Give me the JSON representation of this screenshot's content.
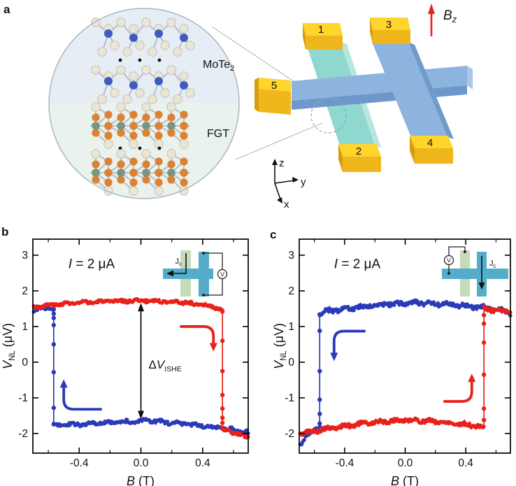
{
  "panel_labels": {
    "a": "a",
    "b": "b",
    "c": "c"
  },
  "panel_a": {
    "inset": {
      "mote2_main": "MoTe",
      "mote2_sub": "2",
      "fgt_label": "FGT",
      "bg_top": "#e7edf5",
      "bg_bottom": "#e9f2ec",
      "atom_colors": {
        "te": "#eae6d7",
        "te_edge": "#c6c2b0",
        "mo": "#3c5dc0",
        "fe": "#dd8233",
        "ge": "#7b947f",
        "bond": "#b4bfc8"
      }
    },
    "device": {
      "contacts": [
        "1",
        "2",
        "3",
        "4",
        "5"
      ],
      "field_label": {
        "main": "B",
        "sub": "z"
      },
      "axis_labels": {
        "x": "x",
        "y": "y",
        "z": "z"
      },
      "colors": {
        "bar_blue_top": "#8db4de",
        "bar_blue_front": "#6e98cc",
        "bar_blue_side": "#6f9ac9",
        "bar_blue_end": "#a9c7e8",
        "bar_teal_top": "#8fd8cf",
        "bar_teal_side": "#b7e6df",
        "gold_top": "#ffd42b",
        "gold_front": "#efb71b",
        "gold_side": "#d89c12",
        "field_arrow": "#e8211a"
      }
    }
  },
  "chart_data": [
    {
      "id": "b",
      "type": "line",
      "title_parts": {
        "var": "I",
        "rest": " = 2 μA"
      },
      "xlabel_parts": {
        "var": "B",
        "unit": " (T)"
      },
      "ylabel_parts": {
        "var": "V",
        "sub": "NL",
        "unit": " (μV)"
      },
      "xlim": [
        -0.7,
        0.695
      ],
      "ylim": [
        -2.55,
        3.45
      ],
      "xticks": {
        "major": [
          -0.4,
          0.0,
          0.4
        ],
        "labels": [
          "-0.4",
          "0.0",
          "0.4"
        ],
        "minor": [
          -0.6,
          -0.2,
          0.2,
          0.6
        ]
      },
      "yticks": {
        "major": [
          -2,
          -1,
          0,
          1,
          2,
          3
        ],
        "labels": [
          "-2",
          "-1",
          "0",
          "1",
          "2",
          "3"
        ]
      },
      "series": [
        {
          "name": "sweep-down-blue",
          "color": "#2a3ab9",
          "seed": 7,
          "noise": 0.045,
          "marker": 2.6,
          "segments": [
            {
              "anchors": [
                [
                  0.695,
                  -1.97
                ],
                [
                  0.55,
                  -1.86
                ],
                [
                  0.3,
                  -1.74
                ],
                [
                  0.05,
                  -1.64
                ],
                [
                  -0.15,
                  -1.68
                ],
                [
                  -0.35,
                  -1.74
                ],
                [
                  -0.565,
                  -1.77
                ]
              ]
            },
            {
              "jump": {
                "b": -0.565,
                "top": 1.5,
                "bottom": -1.78,
                "points": [
                  1.48,
                  1.36,
                  1.24,
                  1.04,
                  0.5,
                  -0.28,
                  -1.28,
                  -1.74
                ]
              }
            },
            {
              "anchors": [
                [
                  -0.565,
                  1.5
                ],
                [
                  -0.62,
                  1.52
                ],
                [
                  -0.66,
                  1.5
                ],
                [
                  -0.695,
                  1.44
                ]
              ]
            }
          ]
        },
        {
          "name": "sweep-up-red",
          "color": "#e8211a",
          "seed": 3,
          "noise": 0.04,
          "marker": 2.6,
          "segments": [
            {
              "anchors": [
                [
                  -0.695,
                  1.55
                ],
                [
                  -0.5,
                  1.64
                ],
                [
                  -0.25,
                  1.7
                ],
                [
                  0.0,
                  1.73
                ],
                [
                  0.25,
                  1.69
                ],
                [
                  0.45,
                  1.57
                ],
                [
                  0.528,
                  1.46
                ]
              ]
            },
            {
              "jump": {
                "b": 0.528,
                "top": 1.46,
                "bottom": -1.88,
                "points": [
                  1.42,
                  0.6,
                  -0.25,
                  -0.92,
                  -1.3,
                  -1.56,
                  -1.7,
                  -1.84
                ]
              }
            },
            {
              "anchors": [
                [
                  0.528,
                  -1.9
                ],
                [
                  0.6,
                  -1.97
                ],
                [
                  0.695,
                  -2.12
                ]
              ]
            }
          ]
        }
      ],
      "arrows": [
        {
          "color": "#2a3ab9",
          "x1": -0.26,
          "y1": -1.32,
          "x2": -0.5,
          "y2": -0.48,
          "head": "up"
        },
        {
          "color": "#e8211a",
          "x1": 0.26,
          "y1": 1.0,
          "x2": 0.47,
          "y2": 0.3,
          "head": "down"
        }
      ],
      "dv_arrow": {
        "b": 0.0,
        "from": -1.6,
        "to": 1.66,
        "label_parts": {
          "delta": "Δ",
          "var": "V",
          "sub": "ISHE"
        }
      },
      "inset": {
        "jc_main": "J",
        "jc_sub": "c",
        "voltmeter": "V",
        "current_bar": "left",
        "colors": {
          "bar": "#54aecb",
          "fgt": "#c5dbbb"
        }
      }
    },
    {
      "id": "c",
      "type": "line",
      "title_parts": {
        "var": "I",
        "rest": " = 2 μA"
      },
      "xlabel_parts": {
        "var": "B",
        "unit": " (T)"
      },
      "ylabel_parts": {
        "var": "V",
        "sub": "NL",
        "unit": " (μV)"
      },
      "xlim": [
        -0.7,
        0.695
      ],
      "ylim": [
        -2.55,
        3.45
      ],
      "xticks": {
        "major": [
          -0.4,
          0.0,
          0.4
        ],
        "labels": [
          "-0.4",
          "0.0",
          "0.4"
        ],
        "minor": [
          -0.6,
          -0.2,
          0.2,
          0.6
        ]
      },
      "yticks": {
        "major": [
          -2,
          -1,
          0,
          1,
          2,
          3
        ],
        "labels": [
          "-2",
          "-1",
          "0",
          "1",
          "2",
          "3"
        ]
      },
      "series": [
        {
          "name": "sweep-down-blue",
          "color": "#2a3ab9",
          "seed": 11,
          "noise": 0.055,
          "marker": 2.6,
          "segments": [
            {
              "anchors": [
                [
                  0.695,
                  1.33
                ],
                [
                  0.67,
                  1.44
                ],
                [
                  0.55,
                  1.52
                ],
                [
                  0.3,
                  1.62
                ],
                [
                  0.05,
                  1.67
                ],
                [
                  -0.15,
                  1.62
                ],
                [
                  -0.35,
                  1.52
                ],
                [
                  -0.5,
                  1.44
                ],
                [
                  -0.565,
                  1.38
                ]
              ]
            },
            {
              "jump": {
                "b": -0.565,
                "top": 1.36,
                "bottom": -1.82,
                "points": [
                  1.34,
                  0.88,
                  -0.25,
                  -1.05,
                  -1.45,
                  -1.72
                ]
              }
            },
            {
              "anchors": [
                [
                  -0.565,
                  -1.83
                ],
                [
                  -0.61,
                  -1.93
                ],
                [
                  -0.655,
                  -2.08
                ],
                [
                  -0.695,
                  -2.32
                ]
              ]
            }
          ]
        },
        {
          "name": "sweep-up-red",
          "color": "#e8211a",
          "seed": 5,
          "noise": 0.05,
          "marker": 2.6,
          "segments": [
            {
              "anchors": [
                [
                  -0.695,
                  -2.0
                ],
                [
                  -0.5,
                  -1.86
                ],
                [
                  -0.25,
                  -1.7
                ],
                [
                  0.0,
                  -1.62
                ],
                [
                  0.2,
                  -1.66
                ],
                [
                  0.38,
                  -1.74
                ],
                [
                  0.52,
                  -1.82
                ]
              ]
            },
            {
              "jump": {
                "b": 0.52,
                "top": 1.48,
                "bottom": -1.8,
                "points": [
                  -1.62,
                  -1.3,
                  -0.35,
                  0.55,
                  1.08,
                  1.32
                ]
              }
            },
            {
              "anchors": [
                [
                  0.52,
                  1.5
                ],
                [
                  0.6,
                  1.46
                ],
                [
                  0.695,
                  1.42
                ]
              ]
            }
          ]
        }
      ],
      "arrows": [
        {
          "color": "#2a3ab9",
          "x1": -0.27,
          "y1": 0.87,
          "x2": -0.47,
          "y2": 0.03,
          "head": "down"
        },
        {
          "color": "#e8211a",
          "x1": 0.26,
          "y1": -1.1,
          "x2": 0.44,
          "y2": -0.32,
          "head": "up"
        }
      ],
      "dv_arrow": null,
      "inset": {
        "jc_main": "J",
        "jc_sub": "c",
        "voltmeter": "V",
        "current_bar": "right",
        "colors": {
          "bar": "#54aecb",
          "fgt": "#c5dbbb"
        }
      }
    }
  ]
}
